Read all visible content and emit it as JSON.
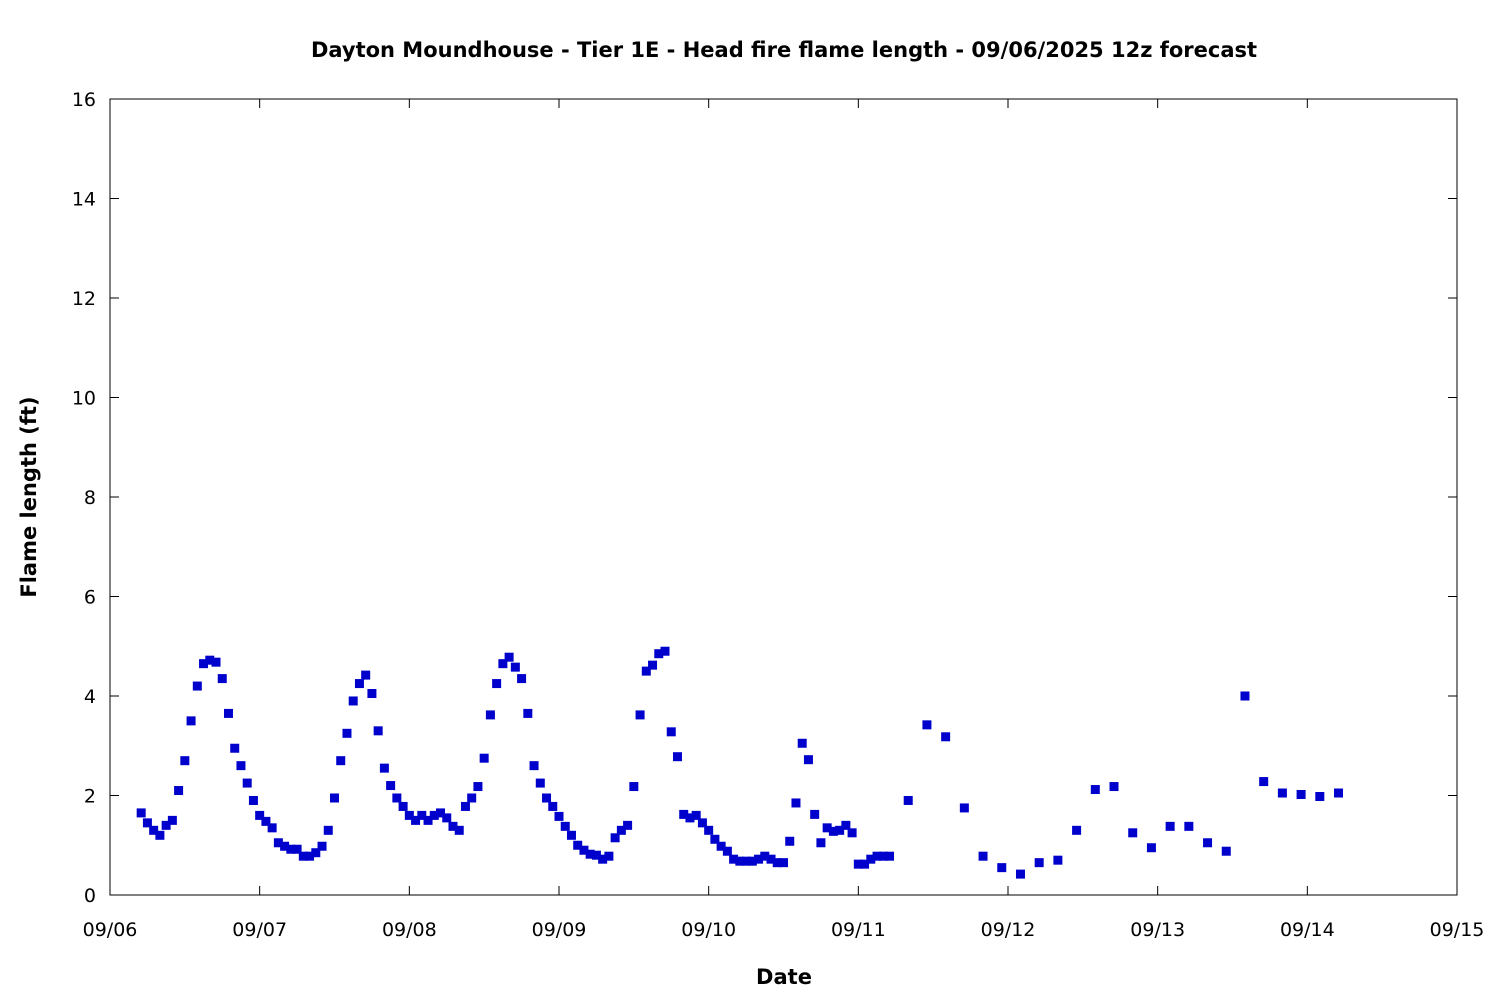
{
  "chart_data": {
    "type": "scatter",
    "title": "Dayton Moundhouse - Tier 1E - Head fire flame length - 09/06/2025 12z forecast",
    "xlabel": "Date",
    "ylabel": "Flame length (ft)",
    "x_axis": "date",
    "xlim": [
      "2025-09-06 00:00",
      "2025-09-15 00:00"
    ],
    "ylim": [
      0,
      16
    ],
    "x_ticks": [
      "09/06",
      "09/07",
      "09/08",
      "09/09",
      "09/10",
      "09/11",
      "09/12",
      "09/13",
      "09/14",
      "09/15"
    ],
    "y_ticks": [
      "0",
      "2",
      "4",
      "6",
      "8",
      "10",
      "12",
      "14",
      "16"
    ],
    "grid": false,
    "legend": "none",
    "marker": "square",
    "marker_color": "#0000cc",
    "series": [
      {
        "x": [
          "2025-09-06 05:00",
          "2025-09-06 06:00",
          "2025-09-06 07:00",
          "2025-09-06 08:00",
          "2025-09-06 09:00",
          "2025-09-06 10:00",
          "2025-09-06 11:00",
          "2025-09-06 12:00",
          "2025-09-06 13:00",
          "2025-09-06 14:00",
          "2025-09-06 15:00",
          "2025-09-06 16:00",
          "2025-09-06 17:00",
          "2025-09-06 18:00",
          "2025-09-06 19:00",
          "2025-09-06 20:00",
          "2025-09-06 21:00",
          "2025-09-06 22:00",
          "2025-09-06 23:00",
          "2025-09-07 00:00",
          "2025-09-07 01:00",
          "2025-09-07 02:00",
          "2025-09-07 03:00",
          "2025-09-07 04:00",
          "2025-09-07 05:00",
          "2025-09-07 06:00",
          "2025-09-07 07:00",
          "2025-09-07 08:00",
          "2025-09-07 09:00",
          "2025-09-07 10:00",
          "2025-09-07 11:00",
          "2025-09-07 12:00",
          "2025-09-07 13:00",
          "2025-09-07 14:00",
          "2025-09-07 15:00",
          "2025-09-07 16:00",
          "2025-09-07 17:00",
          "2025-09-07 18:00",
          "2025-09-07 19:00",
          "2025-09-07 20:00",
          "2025-09-07 21:00",
          "2025-09-07 22:00",
          "2025-09-07 23:00",
          "2025-09-08 00:00",
          "2025-09-08 01:00",
          "2025-09-08 02:00",
          "2025-09-08 03:00",
          "2025-09-08 04:00",
          "2025-09-08 05:00",
          "2025-09-08 06:00",
          "2025-09-08 07:00",
          "2025-09-08 08:00",
          "2025-09-08 09:00",
          "2025-09-08 10:00",
          "2025-09-08 11:00",
          "2025-09-08 12:00",
          "2025-09-08 13:00",
          "2025-09-08 14:00",
          "2025-09-08 15:00",
          "2025-09-08 16:00",
          "2025-09-08 17:00",
          "2025-09-08 18:00",
          "2025-09-08 19:00",
          "2025-09-08 20:00",
          "2025-09-08 21:00",
          "2025-09-08 22:00",
          "2025-09-08 23:00",
          "2025-09-09 00:00",
          "2025-09-09 01:00",
          "2025-09-09 02:00",
          "2025-09-09 03:00",
          "2025-09-09 04:00",
          "2025-09-09 05:00",
          "2025-09-09 06:00",
          "2025-09-09 07:00",
          "2025-09-09 08:00",
          "2025-09-09 09:00",
          "2025-09-09 10:00",
          "2025-09-09 11:00",
          "2025-09-09 12:00",
          "2025-09-09 13:00",
          "2025-09-09 14:00",
          "2025-09-09 15:00",
          "2025-09-09 16:00",
          "2025-09-09 17:00",
          "2025-09-09 18:00",
          "2025-09-09 19:00",
          "2025-09-09 20:00",
          "2025-09-09 21:00",
          "2025-09-09 22:00",
          "2025-09-09 23:00",
          "2025-09-10 00:00",
          "2025-09-10 01:00",
          "2025-09-10 02:00",
          "2025-09-10 03:00",
          "2025-09-10 04:00",
          "2025-09-10 05:00",
          "2025-09-10 06:00",
          "2025-09-10 07:00",
          "2025-09-10 08:00",
          "2025-09-10 09:00",
          "2025-09-10 10:00",
          "2025-09-10 11:00",
          "2025-09-10 12:00",
          "2025-09-10 13:00",
          "2025-09-10 14:00",
          "2025-09-10 15:00",
          "2025-09-10 16:00",
          "2025-09-10 17:00",
          "2025-09-10 18:00",
          "2025-09-10 19:00",
          "2025-09-10 20:00",
          "2025-09-10 21:00",
          "2025-09-10 22:00",
          "2025-09-10 23:00",
          "2025-09-11 00:00",
          "2025-09-11 01:00",
          "2025-09-11 02:00",
          "2025-09-11 03:00",
          "2025-09-11 04:00",
          "2025-09-11 05:00",
          "2025-09-11 08:00",
          "2025-09-11 11:00",
          "2025-09-11 14:00",
          "2025-09-11 17:00",
          "2025-09-11 20:00",
          "2025-09-11 23:00",
          "2025-09-12 02:00",
          "2025-09-12 05:00",
          "2025-09-12 08:00",
          "2025-09-12 11:00",
          "2025-09-12 14:00",
          "2025-09-12 17:00",
          "2025-09-12 20:00",
          "2025-09-12 23:00",
          "2025-09-13 02:00",
          "2025-09-13 05:00",
          "2025-09-13 08:00",
          "2025-09-13 11:00",
          "2025-09-13 14:00",
          "2025-09-13 17:00",
          "2025-09-13 20:00",
          "2025-09-13 23:00",
          "2025-09-14 02:00",
          "2025-09-14 05:00"
        ],
        "y": [
          1.65,
          1.45,
          1.3,
          1.2,
          1.4,
          1.5,
          2.1,
          2.7,
          3.5,
          4.2,
          4.65,
          4.72,
          4.68,
          4.35,
          3.65,
          2.95,
          2.6,
          2.25,
          1.9,
          1.6,
          1.48,
          1.35,
          1.05,
          0.98,
          0.92,
          0.92,
          0.78,
          0.78,
          0.85,
          0.98,
          1.3,
          1.95,
          2.7,
          3.25,
          3.9,
          4.25,
          4.42,
          4.05,
          3.3,
          2.55,
          2.2,
          1.95,
          1.78,
          1.6,
          1.5,
          1.6,
          1.5,
          1.6,
          1.65,
          1.55,
          1.38,
          1.3,
          1.78,
          1.95,
          2.18,
          2.75,
          3.62,
          4.25,
          4.65,
          4.78,
          4.58,
          4.35,
          3.65,
          2.6,
          2.25,
          1.95,
          1.78,
          1.58,
          1.38,
          1.2,
          1.0,
          0.9,
          0.82,
          0.8,
          0.72,
          0.78,
          1.15,
          1.3,
          1.4,
          2.18,
          3.62,
          4.5,
          4.62,
          4.85,
          4.9,
          3.28,
          2.78,
          1.62,
          1.55,
          1.6,
          1.45,
          1.3,
          1.12,
          0.98,
          0.88,
          0.72,
          0.68,
          0.68,
          0.68,
          0.72,
          0.78,
          0.72,
          0.65,
          0.65,
          1.08,
          1.85,
          3.05,
          2.72,
          1.62,
          1.05,
          1.35,
          1.28,
          1.3,
          1.4,
          1.25,
          0.62,
          0.62,
          0.72,
          0.78,
          0.78,
          0.78,
          1.9,
          3.42,
          3.18,
          1.75,
          0.78,
          0.55,
          0.42,
          0.65,
          0.7,
          1.3,
          2.12,
          2.18,
          1.25,
          0.95,
          1.38,
          1.38,
          1.05,
          0.88,
          4.0,
          2.28,
          2.05,
          2.02,
          1.98,
          2.05
        ]
      }
    ]
  }
}
